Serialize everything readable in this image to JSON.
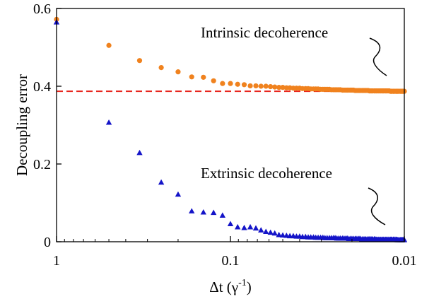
{
  "chart_data": {
    "type": "scatter",
    "title": "",
    "xlabel": "Δt (γ",
    "xlabel_sup": "-1",
    "xlabel_close": ")",
    "ylabel": "Decoupling error",
    "x_scale": "log",
    "x_direction": "reversed",
    "xlim": [
      1,
      0.01
    ],
    "ylim": [
      0,
      0.6
    ],
    "x_ticks": [
      {
        "value": 1,
        "label": "1"
      },
      {
        "value": 0.1,
        "label": "0.1"
      },
      {
        "value": 0.01,
        "label": "0.01"
      }
    ],
    "y_ticks": [
      {
        "value": 0,
        "label": "0"
      },
      {
        "value": 0.2,
        "label": "0.2"
      },
      {
        "value": 0.4,
        "label": "0.4"
      },
      {
        "value": 0.6,
        "label": "0.6"
      }
    ],
    "grid": false,
    "reference_line": {
      "y": 0.387,
      "style": "dashed",
      "color": "#e8261e"
    },
    "series": [
      {
        "marker": "circle",
        "color": "#f0821e",
        "annotation": "Intrinsic decoherence",
        "x": [
          1,
          0.5,
          0.333,
          0.25,
          0.2,
          0.167,
          0.143,
          0.125,
          0.111,
          0.1,
          0.0909,
          0.0833,
          0.0769,
          0.0714,
          0.0667,
          0.0625,
          0.0588,
          0.0556,
          0.0526,
          0.05,
          0.0476,
          0.0455,
          0.0435,
          0.0417,
          0.04,
          0.0385,
          0.037,
          0.0357,
          0.0345,
          0.0333,
          0.0323,
          0.0313,
          0.0303,
          0.0294,
          0.0286,
          0.0278,
          0.027,
          0.0263,
          0.0256,
          0.025,
          0.0244,
          0.0238,
          0.0233,
          0.0227,
          0.0222,
          0.0217,
          0.0213,
          0.0208,
          0.0204,
          0.02,
          0.0196,
          0.0192,
          0.0189,
          0.0185,
          0.0182,
          0.0179,
          0.0175,
          0.0172,
          0.0169,
          0.0167,
          0.0164,
          0.0161,
          0.0159,
          0.0156,
          0.0154,
          0.0152,
          0.0149,
          0.0147,
          0.0145,
          0.0143,
          0.0141,
          0.0139,
          0.0137,
          0.0135,
          0.0133,
          0.0132,
          0.013,
          0.0128,
          0.0127,
          0.0125,
          0.0123,
          0.0122,
          0.012,
          0.0119,
          0.0118,
          0.0116,
          0.0115,
          0.0114,
          0.0112,
          0.0111,
          0.011,
          0.0109,
          0.0108,
          0.0106,
          0.0105,
          0.0104,
          0.0103,
          0.0102,
          0.0101,
          0.01
        ],
        "y": [
          0.572,
          0.505,
          0.466,
          0.448,
          0.437,
          0.424,
          0.423,
          0.414,
          0.407,
          0.407,
          0.405,
          0.404,
          0.401,
          0.401,
          0.4,
          0.4,
          0.399,
          0.398,
          0.397,
          0.397,
          0.396,
          0.396,
          0.395,
          0.395,
          0.395,
          0.394,
          0.394,
          0.394,
          0.393,
          0.393,
          0.393,
          0.393,
          0.392,
          0.392,
          0.392,
          0.392,
          0.392,
          0.391,
          0.391,
          0.391,
          0.391,
          0.391,
          0.391,
          0.39,
          0.39,
          0.39,
          0.39,
          0.39,
          0.39,
          0.39,
          0.39,
          0.389,
          0.389,
          0.389,
          0.389,
          0.389,
          0.389,
          0.389,
          0.389,
          0.389,
          0.389,
          0.389,
          0.388,
          0.388,
          0.388,
          0.388,
          0.388,
          0.388,
          0.388,
          0.388,
          0.388,
          0.388,
          0.388,
          0.388,
          0.388,
          0.388,
          0.388,
          0.388,
          0.388,
          0.388,
          0.388,
          0.388,
          0.387,
          0.387,
          0.387,
          0.387,
          0.387,
          0.387,
          0.387,
          0.387,
          0.387,
          0.387,
          0.387,
          0.387,
          0.387,
          0.387,
          0.387,
          0.387,
          0.387,
          0.387
        ]
      },
      {
        "marker": "triangle",
        "color": "#1414c8",
        "annotation": "Extrinsic decoherence",
        "x": [
          1,
          0.5,
          0.333,
          0.25,
          0.2,
          0.167,
          0.143,
          0.125,
          0.111,
          0.1,
          0.0909,
          0.0833,
          0.0769,
          0.0714,
          0.0667,
          0.0625,
          0.0588,
          0.0556,
          0.0526,
          0.05,
          0.0476,
          0.0455,
          0.0435,
          0.0417,
          0.04,
          0.0385,
          0.037,
          0.0357,
          0.0345,
          0.0333,
          0.0323,
          0.0313,
          0.0303,
          0.0294,
          0.0286,
          0.0278,
          0.027,
          0.0263,
          0.0256,
          0.025,
          0.0244,
          0.0238,
          0.0233,
          0.0227,
          0.0222,
          0.0217,
          0.0213,
          0.0208,
          0.0204,
          0.02,
          0.0196,
          0.0192,
          0.0189,
          0.0185,
          0.0182,
          0.0179,
          0.0175,
          0.0172,
          0.0169,
          0.0167,
          0.0164,
          0.0161,
          0.0159,
          0.0156,
          0.0154,
          0.0152,
          0.0149,
          0.0147,
          0.0145,
          0.0143,
          0.0141,
          0.0139,
          0.0137,
          0.0135,
          0.0133,
          0.0132,
          0.013,
          0.0128,
          0.0127,
          0.0125,
          0.0123,
          0.0122,
          0.012,
          0.0119,
          0.0118,
          0.0116,
          0.0115,
          0.0114,
          0.0112,
          0.0111,
          0.011,
          0.0109,
          0.0108,
          0.0106,
          0.0105,
          0.0104,
          0.0103,
          0.0102,
          0.0101,
          0.01
        ],
        "y": [
          0.565,
          0.307,
          0.229,
          0.153,
          0.122,
          0.079,
          0.076,
          0.075,
          0.068,
          0.046,
          0.038,
          0.036,
          0.038,
          0.035,
          0.03,
          0.026,
          0.024,
          0.022,
          0.018,
          0.017,
          0.016,
          0.015,
          0.015,
          0.014,
          0.014,
          0.013,
          0.013,
          0.012,
          0.012,
          0.012,
          0.011,
          0.011,
          0.011,
          0.011,
          0.01,
          0.01,
          0.01,
          0.01,
          0.01,
          0.01,
          0.009,
          0.009,
          0.009,
          0.009,
          0.009,
          0.009,
          0.009,
          0.008,
          0.008,
          0.008,
          0.008,
          0.008,
          0.008,
          0.008,
          0.008,
          0.008,
          0.007,
          0.007,
          0.007,
          0.007,
          0.007,
          0.007,
          0.007,
          0.007,
          0.007,
          0.007,
          0.007,
          0.007,
          0.006,
          0.006,
          0.006,
          0.006,
          0.006,
          0.006,
          0.006,
          0.006,
          0.006,
          0.006,
          0.006,
          0.006,
          0.006,
          0.006,
          0.006,
          0.006,
          0.006,
          0.006,
          0.006,
          0.006,
          0.006,
          0.006,
          0.005,
          0.005,
          0.005,
          0.005,
          0.005,
          0.005,
          0.005,
          0.005,
          0.005,
          0.005
        ]
      }
    ]
  }
}
